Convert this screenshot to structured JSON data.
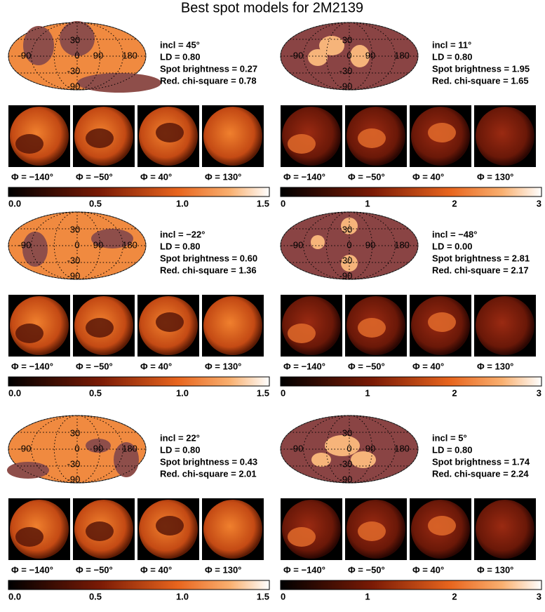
{
  "title": "Best spot models for 2M2139",
  "map_labels": [
    "30",
    "0",
    "90",
    "180",
    "-90",
    "-30",
    "-90"
  ],
  "phases": [
    "Φ = −140°",
    "Φ = −50°",
    "Φ = 40°",
    "Φ = 130°"
  ],
  "panels": [
    {
      "params": [
        "incl =  45°",
        "LD = 0.80",
        "Spot brightness = 0.27",
        "Red. chi-square = 0.78"
      ],
      "colorbar_ticks": [
        "0.0",
        "0.5",
        "1.0",
        "1.5"
      ]
    },
    {
      "params": [
        "incl =  11°",
        "LD = 0.80",
        "Spot brightness = 1.95",
        "Red. chi-square = 1.65"
      ],
      "colorbar_ticks": [
        "0",
        "1",
        "2",
        "3"
      ]
    },
    {
      "params": [
        "incl = −22°",
        "LD = 0.80",
        "Spot brightness = 0.60",
        "Red. chi-square = 1.36"
      ],
      "colorbar_ticks": [
        "0.0",
        "0.5",
        "1.0",
        "1.5"
      ]
    },
    {
      "params": [
        "incl = −48°",
        "LD = 0.00",
        "Spot brightness = 2.81",
        "Red. chi-square = 2.17"
      ],
      "colorbar_ticks": [
        "0",
        "1",
        "2",
        "3"
      ]
    },
    {
      "params": [
        "incl =  22°",
        "LD = 0.80",
        "Spot brightness = 0.43",
        "Red. chi-square = 2.01"
      ],
      "colorbar_ticks": [
        "0.0",
        "0.5",
        "1.0",
        "1.5"
      ]
    },
    {
      "params": [
        "incl =   5°",
        "LD = 0.80",
        "Spot brightness = 1.74",
        "Red. chi-square = 2.24"
      ],
      "colorbar_ticks": [
        "0",
        "1",
        "2",
        "3"
      ]
    }
  ]
}
